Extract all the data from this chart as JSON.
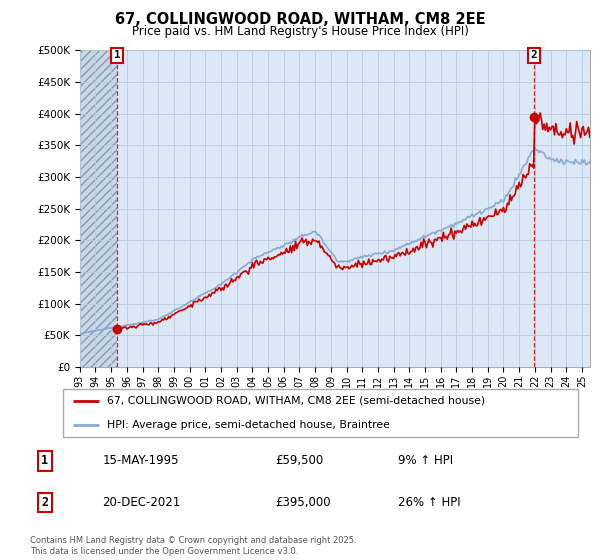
{
  "title": "67, COLLINGWOOD ROAD, WITHAM, CM8 2EE",
  "subtitle": "Price paid vs. HM Land Registry's House Price Index (HPI)",
  "legend_line1": "67, COLLINGWOOD ROAD, WITHAM, CM8 2EE (semi-detached house)",
  "legend_line2": "HPI: Average price, semi-detached house, Braintree",
  "annotation1_date": "15-MAY-1995",
  "annotation1_price": "£59,500",
  "annotation1_hpi": "9% ↑ HPI",
  "annotation2_date": "20-DEC-2021",
  "annotation2_price": "£395,000",
  "annotation2_hpi": "26% ↑ HPI",
  "footer": "Contains HM Land Registry data © Crown copyright and database right 2025.\nThis data is licensed under the Open Government Licence v3.0.",
  "property_color": "#cc0000",
  "hpi_color": "#88aad4",
  "ylim": [
    0,
    500000
  ],
  "yticks": [
    0,
    50000,
    100000,
    150000,
    200000,
    250000,
    300000,
    350000,
    400000,
    450000,
    500000
  ],
  "ytick_labels": [
    "£0",
    "£50K",
    "£100K",
    "£150K",
    "£200K",
    "£250K",
    "£300K",
    "£350K",
    "£400K",
    "£450K",
    "£500K"
  ],
  "bg_color": "#dce8f5",
  "grid_color": "#b8cce0",
  "purchase1_x": 1995.37,
  "purchase1_y": 59500,
  "purchase2_x": 2021.96,
  "purchase2_y": 395000,
  "xmin": 1993,
  "xmax": 2025.5
}
